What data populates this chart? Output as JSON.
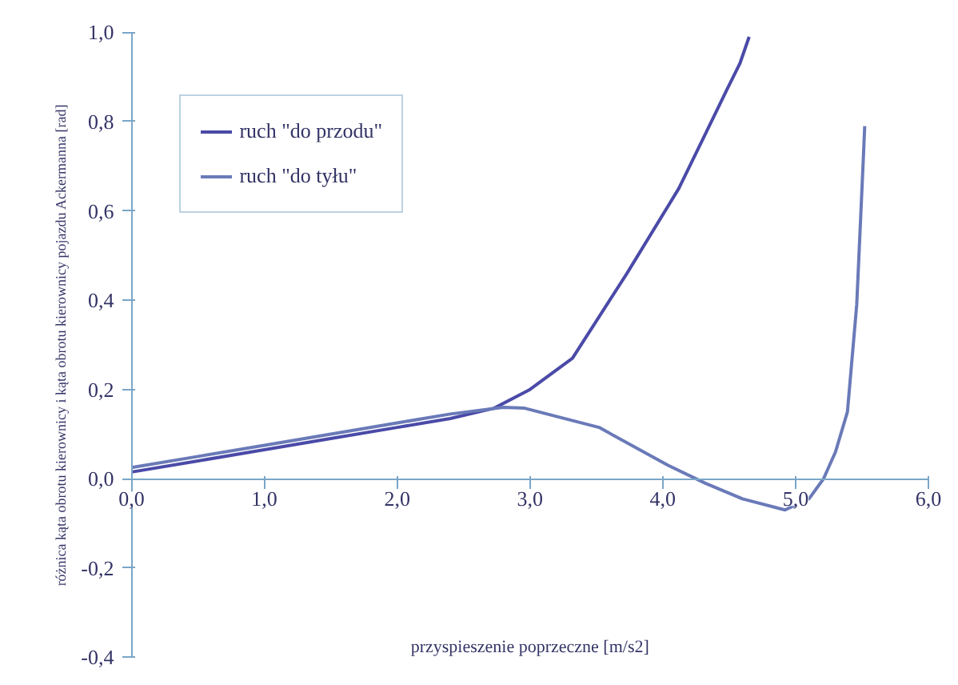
{
  "chart_data": {
    "type": "line",
    "xlabel": "przyspieszenie poprzeczne [m/s2]",
    "ylabel": "różnica kąta obrotu kierownicy i kąta obrotu kierownicy pojazdu Ackermanna [rad]",
    "xlim": [
      0,
      6
    ],
    "ylim": [
      -0.4,
      1.0
    ],
    "xticks": [
      {
        "value": 0,
        "label": "0,0"
      },
      {
        "value": 1,
        "label": "1,0"
      },
      {
        "value": 2,
        "label": "2,0"
      },
      {
        "value": 3,
        "label": "3,0"
      },
      {
        "value": 4,
        "label": "4,0"
      },
      {
        "value": 5,
        "label": "5,0"
      },
      {
        "value": 6,
        "label": "6,0"
      }
    ],
    "yticks": [
      {
        "value": -0.4,
        "label": "-0,4"
      },
      {
        "value": -0.2,
        "label": "-0,2"
      },
      {
        "value": 0,
        "label": "0,0"
      },
      {
        "value": 0.2,
        "label": "0,2"
      },
      {
        "value": 0.4,
        "label": "0,4"
      },
      {
        "value": 0.6,
        "label": "0,6"
      },
      {
        "value": 0.8,
        "label": "0,8"
      },
      {
        "value": 1.0,
        "label": "1,0"
      }
    ],
    "grid": false,
    "legend": "top left",
    "marker": "none",
    "line_style": "solid",
    "series": [
      {
        "name": "ruch \"do przodu\"",
        "color": "#4a4aa8",
        "x": [
          0,
          0.5,
          1,
          1.5,
          2,
          2.4,
          2.73,
          3.0,
          3.32,
          3.73,
          4.12,
          4.3,
          4.48,
          4.58,
          4.65
        ],
        "values": [
          0.015,
          0.04,
          0.065,
          0.09,
          0.115,
          0.135,
          0.158,
          0.2,
          0.27,
          0.46,
          0.65,
          0.76,
          0.87,
          0.93,
          0.99
        ]
      },
      {
        "name": "ruch \"do tyłu\"",
        "color": "#6a7ab8",
        "x": [
          0,
          0.5,
          1,
          1.5,
          2,
          2.4,
          2.8,
          2.96,
          3.52,
          4.04,
          4.32,
          4.6,
          4.92,
          5.1,
          5.21,
          5.3,
          5.39,
          5.46,
          5.51,
          5.52
        ],
        "values": [
          0.025,
          0.05,
          0.075,
          0.1,
          0.125,
          0.145,
          0.16,
          0.158,
          0.115,
          0.03,
          -0.01,
          -0.045,
          -0.07,
          -0.045,
          0.0,
          0.06,
          0.15,
          0.39,
          0.72,
          0.79
        ]
      }
    ]
  }
}
